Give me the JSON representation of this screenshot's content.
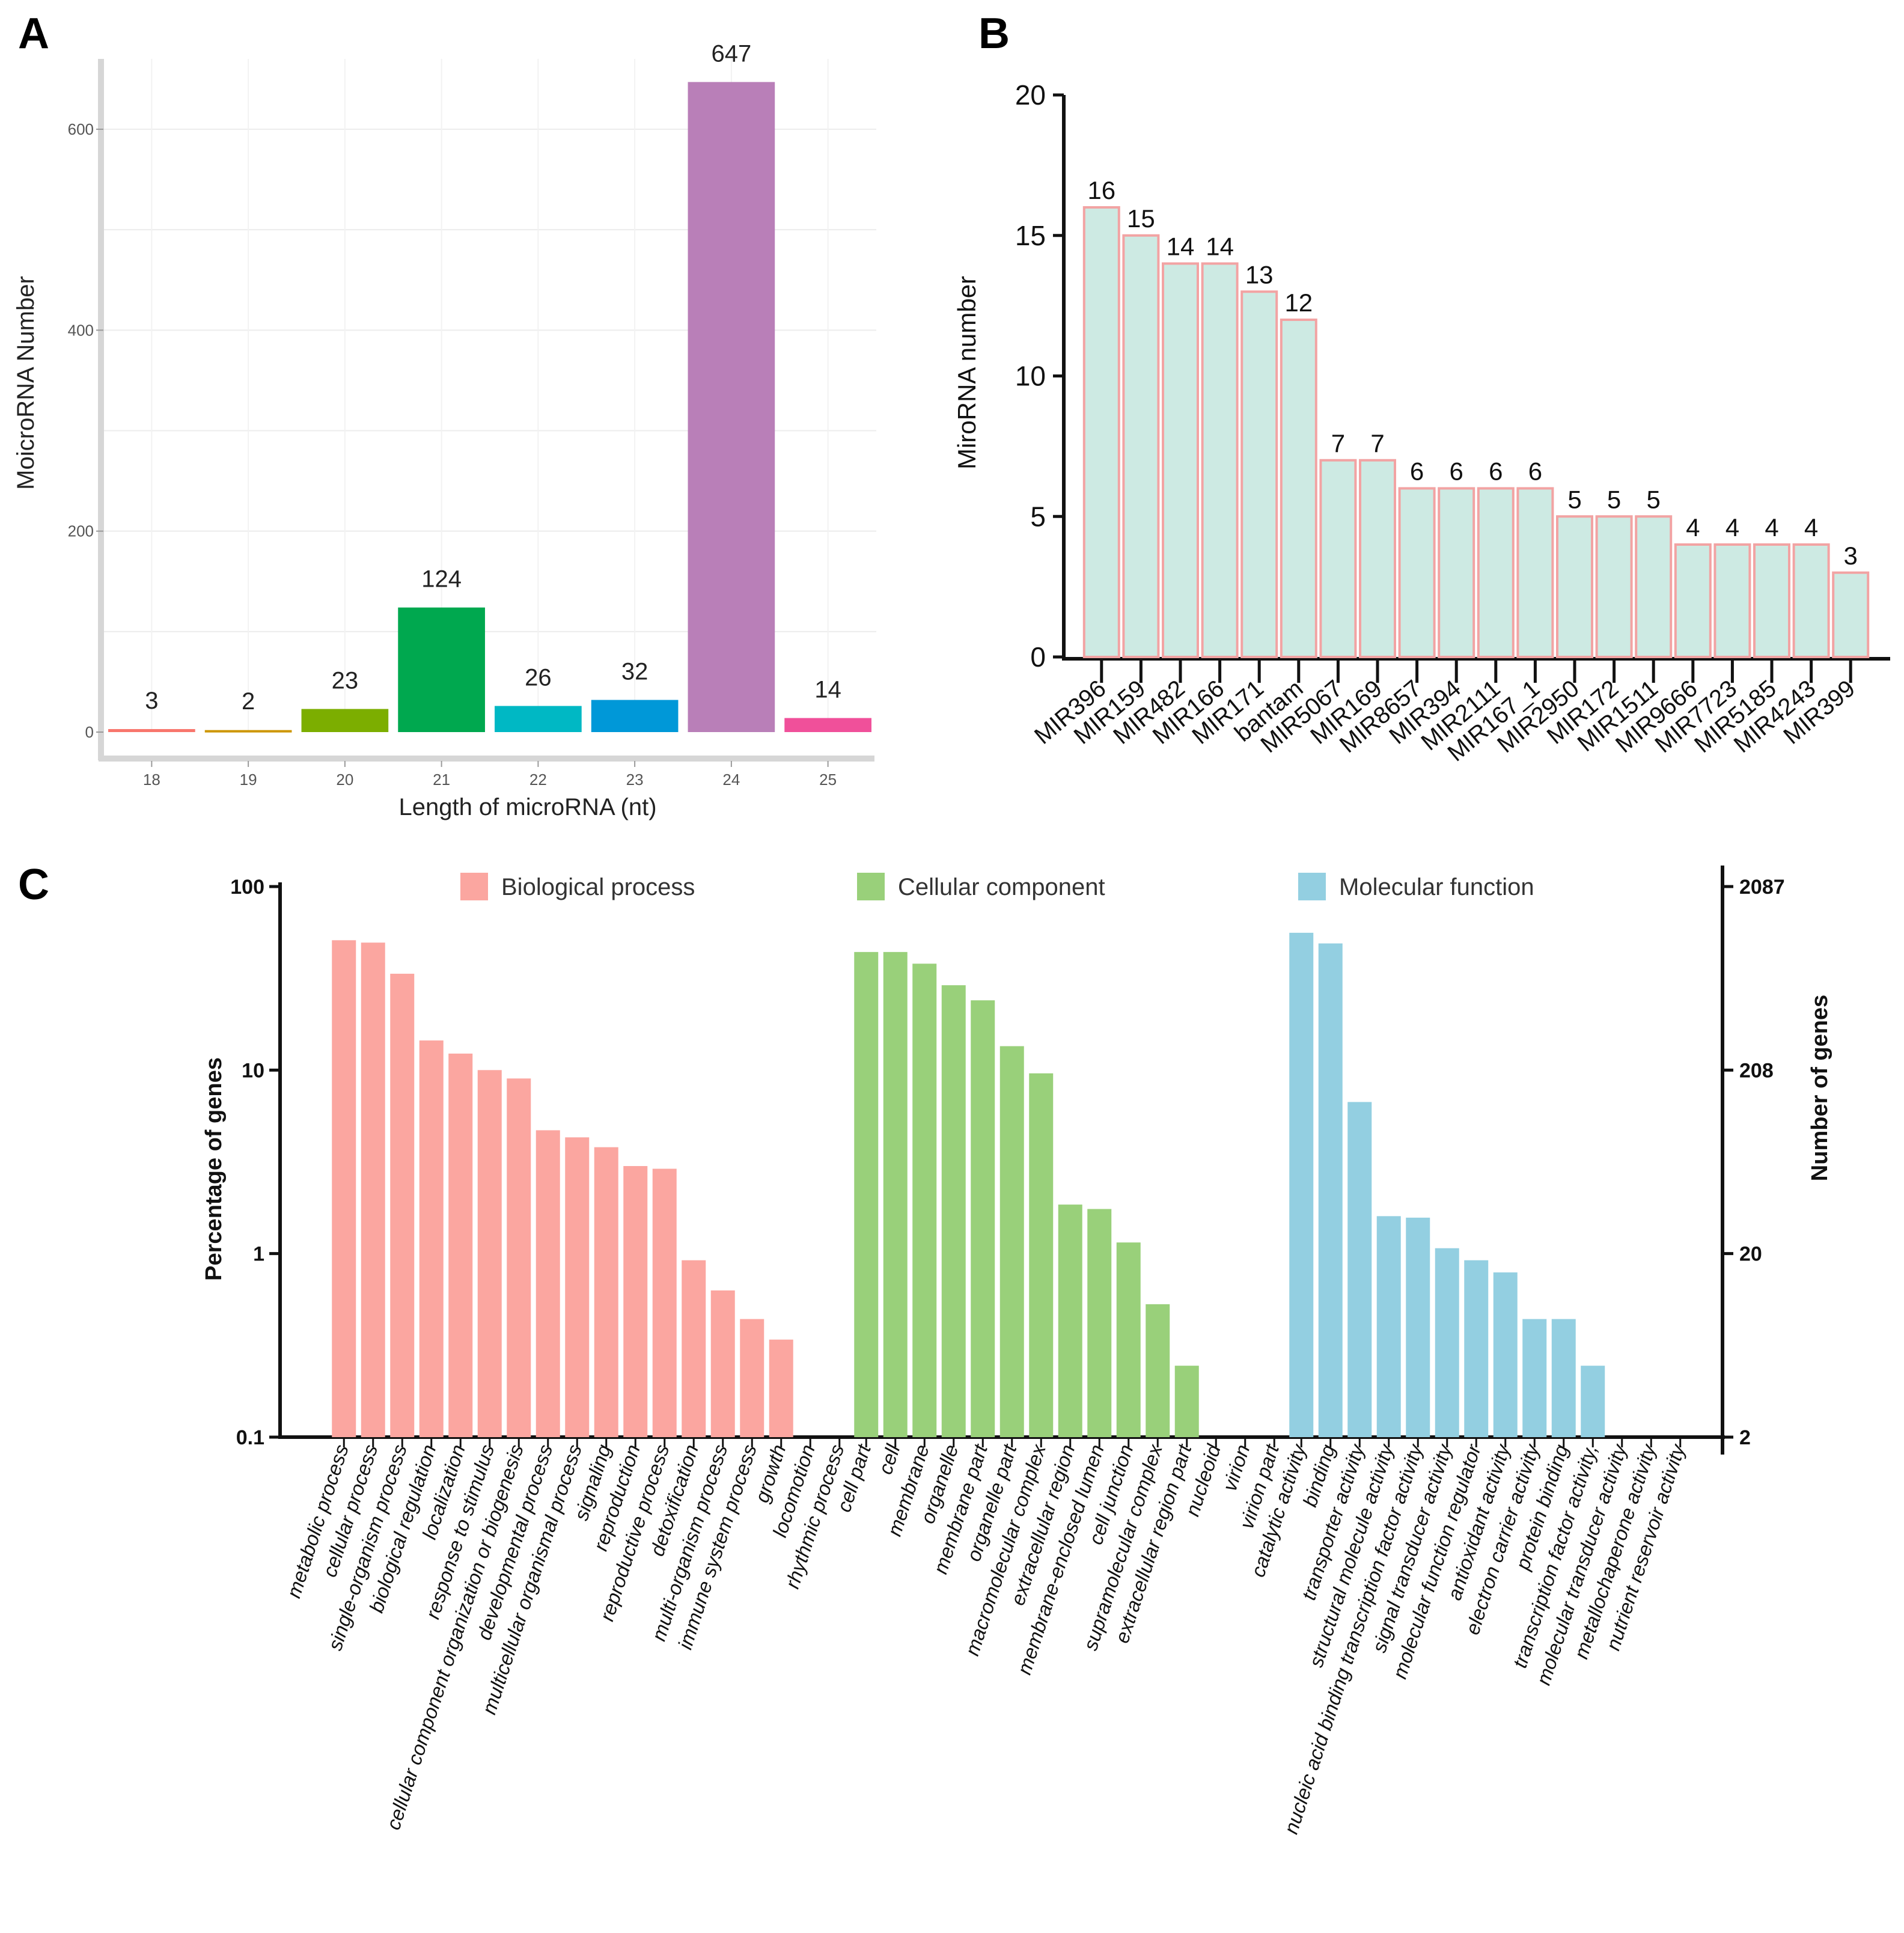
{
  "panels": {
    "a": "A",
    "b": "B",
    "c": "C"
  },
  "chart_data": [
    {
      "id": "A",
      "type": "bar",
      "title": "",
      "xlabel": "Length of microRNA (nt)",
      "ylabel": "MoicroRNA Number",
      "ylim": [
        0,
        670
      ],
      "yticks": [
        0,
        200,
        400,
        600
      ],
      "categories": [
        "18",
        "19",
        "20",
        "21",
        "22",
        "23",
        "24",
        "25"
      ],
      "values": [
        3,
        2,
        23,
        124,
        26,
        32,
        647,
        14
      ],
      "colors": [
        "#f8766d",
        "#cd9600",
        "#7cae00",
        "#00a84f",
        "#00b8c4",
        "#0098d8",
        "#b97fb8",
        "#f0509a"
      ],
      "data_labels": [
        "3",
        "2",
        "23",
        "124",
        "26",
        "32",
        "647",
        "14"
      ],
      "grid": true
    },
    {
      "id": "B",
      "type": "bar",
      "title": "",
      "xlabel": "",
      "ylabel": "MiroRNA number",
      "ylim": [
        0,
        20
      ],
      "yticks": [
        0,
        5,
        10,
        15,
        20
      ],
      "categories": [
        "MIR396",
        "MIR159",
        "MIR482",
        "MIR166",
        "MIR171",
        "bantam",
        "MIR5067",
        "MIR169",
        "MIR8657",
        "MIR394",
        "MIR2111",
        "MIR167_1",
        "MIR2950",
        "MIR172",
        "MIR1511",
        "MIR9666",
        "MIR7723",
        "MIR5185",
        "MIR4243",
        "MIR399"
      ],
      "values": [
        16,
        15,
        14,
        14,
        13,
        12,
        7,
        7,
        6,
        6,
        6,
        6,
        5,
        5,
        5,
        4,
        4,
        4,
        4,
        3
      ],
      "data_labels": [
        "16",
        "15",
        "14",
        "14",
        "13",
        "12",
        "7",
        "7",
        "6",
        "6",
        "6",
        "6",
        "5",
        "5",
        "5",
        "4",
        "4",
        "4",
        "4",
        "3"
      ],
      "bar_color": "#cdeae3",
      "edge_color": "#f2a3a3",
      "grid": false
    },
    {
      "id": "C",
      "type": "bar",
      "title": "",
      "xlabel": "",
      "ylabel": "Percentage of genes",
      "y2label": "Number of genes",
      "yscale": "log",
      "ylim": [
        0.1,
        100
      ],
      "yticks": [
        "0.1",
        "1",
        "10",
        "100"
      ],
      "y2ticks": [
        "2",
        "20",
        "208",
        "2087"
      ],
      "grid": false,
      "series": [
        {
          "name": "Biological process",
          "color": "#fba6a0",
          "categories": [
            "metabolic process",
            "cellular process",
            "single-organism process",
            "biological regulation",
            "localization",
            "response to stimulus",
            "cellular component organization or biogenesis",
            "developmental process",
            "multicellular organismal process",
            "signaling",
            "reproduction",
            "reproductive process",
            "detoxification",
            "multi-organism process",
            "immune system process",
            "growth",
            "locomotion",
            "rhythmic process"
          ],
          "values": [
            51,
            49.5,
            33.5,
            14.5,
            12.3,
            10,
            9,
            4.7,
            4.3,
            3.8,
            3,
            2.9,
            0.92,
            0.63,
            0.44,
            0.34,
            0,
            0
          ]
        },
        {
          "name": "Cellular component",
          "color": "#99d07a",
          "categories": [
            "cell part",
            "cell",
            "membrane",
            "organelle",
            "membrane part",
            "organelle part",
            "macromolecular complex",
            "extracellular region",
            "membrane-enclosed lumen",
            "cell junction",
            "supramolecular complex",
            "extracellular region part",
            "nucleoid",
            "virion",
            "virion part"
          ],
          "values": [
            44,
            44,
            38,
            29,
            24,
            13.5,
            9.6,
            1.85,
            1.75,
            1.15,
            0.53,
            0.245,
            0,
            0,
            0
          ]
        },
        {
          "name": "Molecular function",
          "color": "#93cfe1",
          "categories": [
            "catalytic activity",
            "binding",
            "transporter activity",
            "structural molecule activity",
            "nucleic acid binding transcription factor activity",
            "signal transducer activity",
            "molecular function regulator",
            "antioxidant activity",
            "electron carrier activity",
            "protein binding",
            "transcription factor activity,",
            "molecular transducer activity",
            "metallochaperone activity",
            "nutrient reservoir activity"
          ],
          "values": [
            56,
            49,
            6.7,
            1.6,
            1.57,
            1.07,
            0.92,
            0.79,
            0.44,
            0.44,
            0.245,
            0,
            0,
            0
          ]
        }
      ]
    }
  ]
}
